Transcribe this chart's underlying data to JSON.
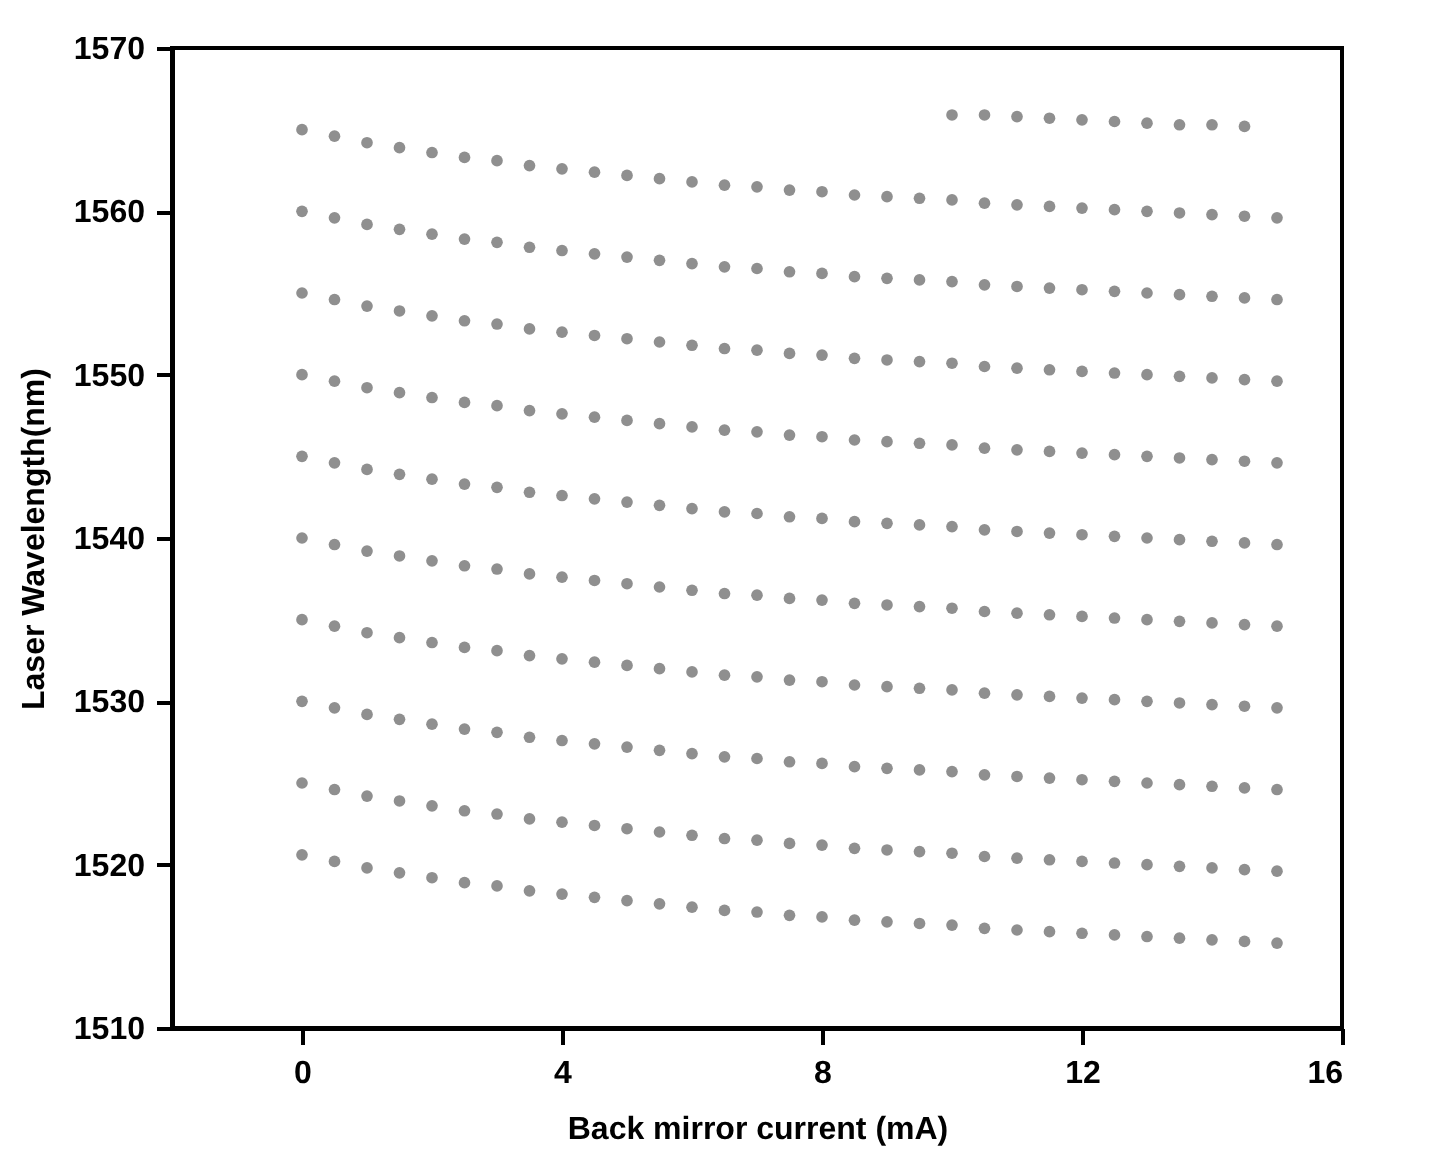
{
  "chart_data": {
    "type": "scatter",
    "xlabel": "Back mirror current (mA)",
    "ylabel": "Laser Wavelength(nm)",
    "xlim": [
      -2,
      16
    ],
    "xticks": [
      0,
      4,
      8,
      12,
      16
    ],
    "ylim": [
      1510,
      1570
    ],
    "yticks": [
      1510,
      1520,
      1530,
      1540,
      1550,
      1560,
      1570
    ],
    "marker": "circle",
    "x": [
      0,
      0.5,
      1,
      1.5,
      2,
      2.5,
      3,
      3.5,
      4,
      4.5,
      5,
      5.5,
      6,
      6.5,
      7,
      7.5,
      8,
      8.5,
      9,
      9.5,
      10,
      10.5,
      11,
      11.5,
      12,
      12.5,
      13,
      13.5,
      14,
      14.5,
      15
    ],
    "series": [
      {
        "color": "#8f8f8f",
        "x": [
          10,
          10.5,
          11,
          11.5,
          12,
          12.5,
          13,
          13.5,
          14,
          14.5
        ],
        "values": [
          1565.9,
          1565.9,
          1565.8,
          1565.7,
          1565.6,
          1565.5,
          1565.4,
          1565.3,
          1565.3,
          1565.2
        ]
      },
      {
        "color": "#8f8f8f",
        "values": [
          1565,
          1564.6,
          1564.2,
          1563.9,
          1563.6,
          1563.3,
          1563.1,
          1562.8,
          1562.6,
          1562.4,
          1562.2,
          1562,
          1561.8,
          1561.6,
          1561.5,
          1561.3,
          1561.2,
          1561,
          1560.9,
          1560.8,
          1560.7,
          1560.5,
          1560.4,
          1560.3,
          1560.2,
          1560.1,
          1560,
          1559.9,
          1559.8,
          1559.7,
          1559.6
        ]
      },
      {
        "color": "#8f8f8f",
        "values": [
          1560,
          1559.6,
          1559.2,
          1558.9,
          1558.6,
          1558.3,
          1558.1,
          1557.8,
          1557.6,
          1557.4,
          1557.2,
          1557,
          1556.8,
          1556.6,
          1556.5,
          1556.3,
          1556.2,
          1556,
          1555.9,
          1555.8,
          1555.7,
          1555.5,
          1555.4,
          1555.3,
          1555.2,
          1555.1,
          1555,
          1554.9,
          1554.8,
          1554.7,
          1554.6
        ]
      },
      {
        "color": "#8f8f8f",
        "values": [
          1555,
          1554.6,
          1554.2,
          1553.9,
          1553.6,
          1553.3,
          1553.1,
          1552.8,
          1552.6,
          1552.4,
          1552.2,
          1552,
          1551.8,
          1551.6,
          1551.5,
          1551.3,
          1551.2,
          1551,
          1550.9,
          1550.8,
          1550.7,
          1550.5,
          1550.4,
          1550.3,
          1550.2,
          1550.1,
          1550,
          1549.9,
          1549.8,
          1549.7,
          1549.6
        ]
      },
      {
        "color": "#8f8f8f",
        "values": [
          1550,
          1549.6,
          1549.2,
          1548.9,
          1548.6,
          1548.3,
          1548.1,
          1547.8,
          1547.6,
          1547.4,
          1547.2,
          1547,
          1546.8,
          1546.6,
          1546.5,
          1546.3,
          1546.2,
          1546,
          1545.9,
          1545.8,
          1545.7,
          1545.5,
          1545.4,
          1545.3,
          1545.2,
          1545.1,
          1545,
          1544.9,
          1544.8,
          1544.7,
          1544.6
        ]
      },
      {
        "color": "#8f8f8f",
        "values": [
          1545,
          1544.6,
          1544.2,
          1543.9,
          1543.6,
          1543.3,
          1543.1,
          1542.8,
          1542.6,
          1542.4,
          1542.2,
          1542,
          1541.8,
          1541.6,
          1541.5,
          1541.3,
          1541.2,
          1541,
          1540.9,
          1540.8,
          1540.7,
          1540.5,
          1540.4,
          1540.3,
          1540.2,
          1540.1,
          1540,
          1539.9,
          1539.8,
          1539.7,
          1539.6
        ]
      },
      {
        "color": "#8f8f8f",
        "values": [
          1540,
          1539.6,
          1539.2,
          1538.9,
          1538.6,
          1538.3,
          1538.1,
          1537.8,
          1537.6,
          1537.4,
          1537.2,
          1537,
          1536.8,
          1536.6,
          1536.5,
          1536.3,
          1536.2,
          1536,
          1535.9,
          1535.8,
          1535.7,
          1535.5,
          1535.4,
          1535.3,
          1535.2,
          1535.1,
          1535,
          1534.9,
          1534.8,
          1534.7,
          1534.6
        ]
      },
      {
        "color": "#8f8f8f",
        "values": [
          1535,
          1534.6,
          1534.2,
          1533.9,
          1533.6,
          1533.3,
          1533.1,
          1532.8,
          1532.6,
          1532.4,
          1532.2,
          1532,
          1531.8,
          1531.6,
          1531.5,
          1531.3,
          1531.2,
          1531,
          1530.9,
          1530.8,
          1530.7,
          1530.5,
          1530.4,
          1530.3,
          1530.2,
          1530.1,
          1530,
          1529.9,
          1529.8,
          1529.7,
          1529.6
        ]
      },
      {
        "color": "#8f8f8f",
        "values": [
          1530,
          1529.6,
          1529.2,
          1528.9,
          1528.6,
          1528.3,
          1528.1,
          1527.8,
          1527.6,
          1527.4,
          1527.2,
          1527,
          1526.8,
          1526.6,
          1526.5,
          1526.3,
          1526.2,
          1526,
          1525.9,
          1525.8,
          1525.7,
          1525.5,
          1525.4,
          1525.3,
          1525.2,
          1525.1,
          1525,
          1524.9,
          1524.8,
          1524.7,
          1524.6
        ]
      },
      {
        "color": "#8f8f8f",
        "values": [
          1525,
          1524.6,
          1524.2,
          1523.9,
          1523.6,
          1523.3,
          1523.1,
          1522.8,
          1522.6,
          1522.4,
          1522.2,
          1522,
          1521.8,
          1521.6,
          1521.5,
          1521.3,
          1521.2,
          1521,
          1520.9,
          1520.8,
          1520.7,
          1520.5,
          1520.4,
          1520.3,
          1520.2,
          1520.1,
          1520,
          1519.9,
          1519.8,
          1519.7,
          1519.6
        ]
      },
      {
        "color": "#8f8f8f",
        "values": [
          1520.6,
          1520.2,
          1519.8,
          1519.5,
          1519.2,
          1518.9,
          1518.7,
          1518.4,
          1518.2,
          1518,
          1517.8,
          1517.6,
          1517.4,
          1517.2,
          1517.1,
          1516.9,
          1516.8,
          1516.6,
          1516.5,
          1516.4,
          1516.3,
          1516.1,
          1516,
          1515.9,
          1515.8,
          1515.7,
          1515.6,
          1515.5,
          1515.4,
          1515.3,
          1515.2
        ]
      }
    ]
  }
}
